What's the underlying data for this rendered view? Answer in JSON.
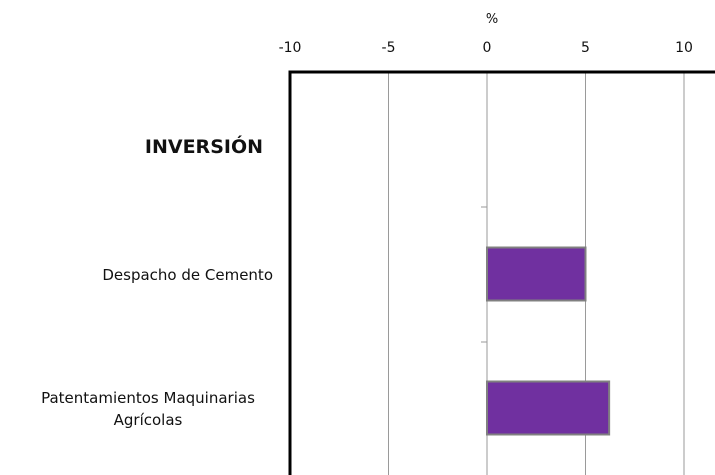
{
  "chart_data": {
    "type": "bar",
    "orientation": "horizontal",
    "unit_label": "%",
    "xlim": [
      -10,
      11.5
    ],
    "xticks": [
      "-10",
      "-5",
      "0",
      "5",
      "10"
    ],
    "grid": true,
    "section_label": "INVERSIÓN",
    "categories": [
      [
        "Despacho de Cemento"
      ],
      [
        "Patentamientos Maquinarias",
        "Agrícolas"
      ]
    ],
    "values": [
      5.0,
      6.2
    ],
    "colors": {
      "bar": "#7030a0",
      "bar_border": "#808080",
      "grid": "#9a9a9a",
      "axis": "#000000"
    }
  }
}
